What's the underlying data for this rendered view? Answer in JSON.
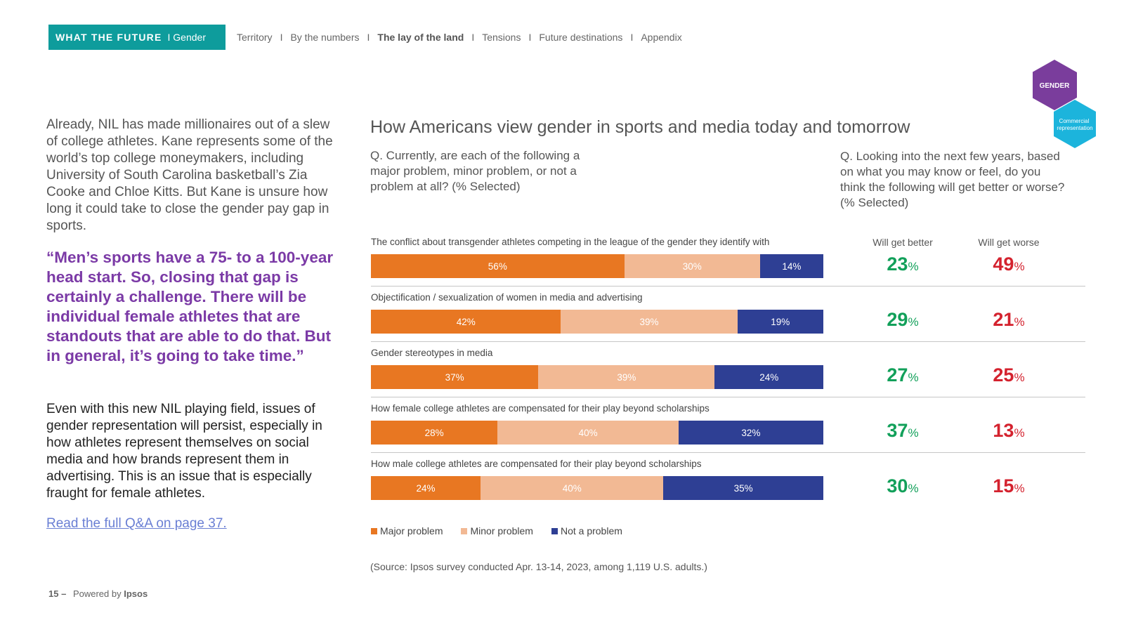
{
  "header": {
    "brand": "WHAT THE FUTURE",
    "brand_section": "I Gender",
    "nav": [
      {
        "label": "Territory",
        "active": false
      },
      {
        "label": "By the numbers",
        "active": false
      },
      {
        "label": "The lay of the land",
        "active": true
      },
      {
        "label": "Tensions",
        "active": false
      },
      {
        "label": "Future destinations",
        "active": false
      },
      {
        "label": "Appendix",
        "active": false
      }
    ],
    "nav_separator": "I",
    "badges": {
      "primary": "GENDER",
      "secondary": "Commercial representation",
      "primary_color": "#7a3d9c",
      "secondary_color": "#1cb4dc"
    }
  },
  "left": {
    "paragraph1": "Already, NIL has made millionaires out of a slew of college athletes. Kane represents some of the world’s top college moneymakers, including University of South Carolina basketball’s Zia Cooke and Chloe Kitts. But Kane is unsure how long it could take to close the gender pay gap in sports.",
    "quote": "“Men’s sports have a 75- to a 100-year head start. So, closing that gap is certainly a challenge. There will be individual female athletes that are standouts that are able to do that. But in general, it’s going to take time.”",
    "paragraph2": "Even with this new NIL playing field, issues of gender representation will persist, especially in how athletes represent themselves on social media and how brands represent them in advertising. This is an issue that is especially fraught for female athletes.",
    "link": "Read the full Q&A on page 37."
  },
  "footer": {
    "page": "15 –",
    "powered": "Powered by",
    "company": "Ipsos"
  },
  "chart_data": {
    "type": "bar",
    "stacked": true,
    "orientation": "horizontal",
    "title": "How Americans view gender in sports and media today and tomorrow",
    "question_left": "Q. Currently, are each of the following a major problem, minor problem, or not a problem at all? (% Selected)",
    "question_right": "Q. Looking into the next few years, based on what you may know or feel, do you think the following will get better or worse? (% Selected)",
    "categories": [
      "The conflict about transgender athletes competing in the league of the gender they identify with",
      "Objectification / sexualization of women in media and advertising",
      "Gender stereotypes in media",
      "How female college athletes are compensated for their play beyond scholarships",
      "How male college athletes are compensated for their play beyond scholarships"
    ],
    "series": [
      {
        "name": "Major problem",
        "color": "#e87722",
        "values": [
          56,
          42,
          37,
          28,
          24
        ]
      },
      {
        "name": "Minor problem",
        "color": "#f2b994",
        "values": [
          30,
          39,
          39,
          40,
          40
        ]
      },
      {
        "name": "Not a problem",
        "color": "#2e3f94",
        "values": [
          14,
          19,
          24,
          32,
          35
        ]
      }
    ],
    "outlook": {
      "better_label": "Will get better",
      "worse_label": "Will get worse",
      "better": [
        23,
        29,
        27,
        37,
        30
      ],
      "worse": [
        49,
        21,
        25,
        13,
        15
      ],
      "better_color": "#12a05a",
      "worse_color": "#d4222e"
    },
    "unit": "%",
    "legend_position": "bottom-left",
    "source": "(Source: Ipsos survey conducted Apr. 13-14, 2023, among 1,119 U.S. adults.)"
  }
}
